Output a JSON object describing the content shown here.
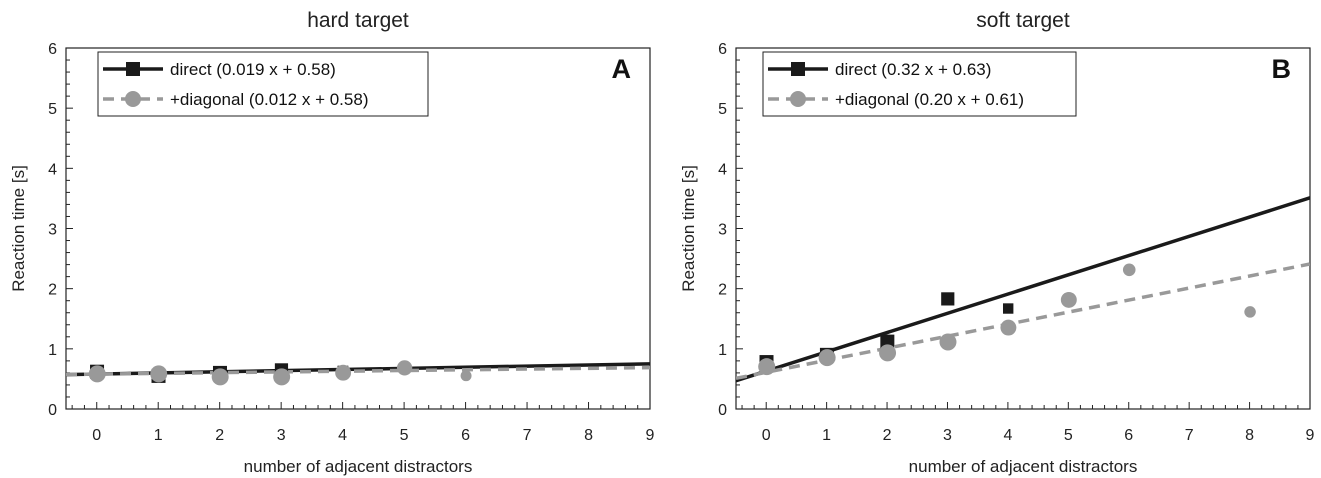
{
  "chart_data": [
    {
      "type": "scatter",
      "title": "hard target",
      "panel_letter": "A",
      "xlabel": "number of adjacent distractors",
      "ylabel": "Reaction time [s]",
      "xlim": [
        -0.5,
        9
      ],
      "ylim": [
        0,
        6
      ],
      "xticks": [
        "0",
        "1",
        "2",
        "3",
        "4",
        "5",
        "6",
        "7",
        "8",
        "9"
      ],
      "yticks": [
        "0",
        "1",
        "2",
        "3",
        "4",
        "5",
        "6"
      ],
      "legend_position": "top-left",
      "series": [
        {
          "name": "direct",
          "legend_label": "direct (0.019 x + 0.58)",
          "fit_slope": 0.019,
          "fit_intercept": 0.58,
          "color": "#1a1a1a",
          "marker": "square",
          "line_style": "solid",
          "x": [
            0,
            1,
            2,
            3,
            4
          ],
          "y": [
            0.62,
            0.55,
            0.6,
            0.65,
            0.63
          ],
          "weight": [
            1.0,
            1.0,
            1.0,
            0.9,
            0.6
          ]
        },
        {
          "name": "+diagonal",
          "legend_label": "+diagonal (0.012 x + 0.58)",
          "fit_slope": 0.012,
          "fit_intercept": 0.58,
          "color": "#999999",
          "marker": "circle",
          "line_style": "dashed",
          "x": [
            0,
            1,
            2,
            3,
            4,
            5,
            6
          ],
          "y": [
            0.6,
            0.6,
            0.55,
            0.55,
            0.62,
            0.7,
            0.57
          ],
          "weight": [
            1.0,
            1.0,
            1.0,
            1.0,
            0.9,
            0.85,
            0.45
          ]
        }
      ]
    },
    {
      "type": "scatter",
      "title": "soft target",
      "panel_letter": "B",
      "xlabel": "number of adjacent distractors",
      "ylabel": "Reaction time [s]",
      "xlim": [
        -0.5,
        9
      ],
      "ylim": [
        0,
        6
      ],
      "xticks": [
        "0",
        "1",
        "2",
        "3",
        "4",
        "5",
        "6",
        "7",
        "8",
        "9"
      ],
      "yticks": [
        "0",
        "1",
        "2",
        "3",
        "4",
        "5",
        "6"
      ],
      "legend_position": "top-left",
      "series": [
        {
          "name": "direct",
          "legend_label": "direct (0.32 x + 0.63)",
          "fit_slope": 0.32,
          "fit_intercept": 0.63,
          "color": "#1a1a1a",
          "marker": "square",
          "line_style": "solid",
          "x": [
            0,
            1,
            2,
            3,
            4
          ],
          "y": [
            0.78,
            0.9,
            1.12,
            1.83,
            1.67
          ],
          "weight": [
            1.0,
            1.0,
            1.0,
            0.9,
            0.55
          ]
        },
        {
          "name": "+diagonal",
          "legend_label": "+diagonal (0.20 x + 0.61)",
          "fit_slope": 0.2,
          "fit_intercept": 0.61,
          "color": "#999999",
          "marker": "circle",
          "line_style": "dashed",
          "x": [
            0,
            1,
            2,
            3,
            4,
            5,
            6,
            8
          ],
          "y": [
            0.72,
            0.87,
            0.95,
            1.13,
            1.37,
            1.83,
            2.33,
            1.63
          ],
          "weight": [
            1.0,
            1.0,
            1.0,
            1.0,
            0.9,
            0.9,
            0.6,
            0.5
          ]
        }
      ]
    }
  ]
}
